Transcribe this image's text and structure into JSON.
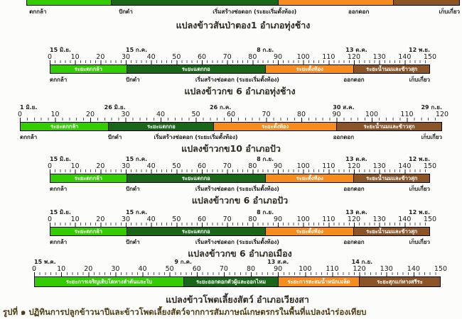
{
  "palette": {
    "light_green": "#33cc00",
    "dark_green": "#196619",
    "orange": "#f68b1e",
    "brown": "#8a5426"
  },
  "figure_caption": "รูปที่ ๑ ปฏิทินการปลูกข้าวนาปีและข้าวโพดเลี้ยงสัตว์จากการสัมภาษณ์เกษตรกรในพื้นที่แปลงนำร่องเทียบ",
  "chart_data": [
    {
      "type": "bar",
      "layout": "horizontal-timeline",
      "x_unit": "days",
      "caption": "แปลงข้าวสันป่าตอง1 อำเภอทุ่งช้าง",
      "axis": {
        "min": 0,
        "max": 150,
        "tick_step": 10,
        "minor_tick": 2,
        "tick_labels": []
      },
      "dates": [],
      "segments": [
        {
          "color": "light_green",
          "start": 0,
          "end": 29,
          "label": ""
        },
        {
          "color": "dark_green",
          "start": 29,
          "end": 87,
          "label": ""
        },
        {
          "color": "orange",
          "start": 87,
          "end": 127,
          "label": ""
        },
        {
          "color": "brown",
          "start": 127,
          "end": 150,
          "label": ""
        }
      ],
      "stage_labels": [
        {
          "day": 1,
          "align": "left",
          "label": "ตกกล้า"
        },
        {
          "day": 32,
          "align": "left",
          "label": "ปักดำ"
        },
        {
          "day": 79,
          "align": "center",
          "label": "เริ่มสร้างช่อดอก (ระยะเริ่มตั้งท้อง)"
        },
        {
          "day": 115,
          "align": "center",
          "label": "ออกดอก"
        },
        {
          "day": 150,
          "align": "right",
          "label": "เก็บเกี่ยว"
        }
      ]
    },
    {
      "type": "bar",
      "layout": "horizontal-timeline",
      "x_unit": "days",
      "caption": "แปลงข้าวกข 6 อำเภอทุ่งช้าง",
      "axis": {
        "min": 0,
        "max": 150,
        "tick_step": 10,
        "minor_tick": 2,
        "tick_labels": [
          "0",
          "10",
          "20",
          "30",
          "40",
          "50",
          "60",
          "70",
          "80",
          "90",
          "100",
          "110",
          "120",
          "130",
          "140",
          "150"
        ]
      },
      "dates": [
        {
          "day": 0,
          "align": "left",
          "label": "15 มิ.ย."
        },
        {
          "day": 30,
          "align": "left",
          "label": "15 ก.ค."
        },
        {
          "day": 85,
          "align": "center",
          "label": "8 ก.ย."
        },
        {
          "day": 121,
          "align": "center",
          "label": "13 ต.ค."
        },
        {
          "day": 150,
          "align": "right",
          "label": "12 พ.ย."
        }
      ],
      "segments": [
        {
          "color": "light_green",
          "start": 0,
          "end": 30,
          "label": "ระยะตกกล้า"
        },
        {
          "color": "dark_green",
          "start": 30,
          "end": 85,
          "label": "ระยะแตกกอ"
        },
        {
          "color": "orange",
          "start": 85,
          "end": 120,
          "label": "ระยะตั้งท้อง"
        },
        {
          "color": "brown",
          "start": 120,
          "end": 150,
          "label": "ระยะน้ำนมและข้าวสุก"
        }
      ],
      "stage_labels": [
        {
          "day": 0,
          "align": "left",
          "label": "ตกกล้า"
        },
        {
          "day": 30,
          "align": "left",
          "label": "ปักดำ"
        },
        {
          "day": 74,
          "align": "center",
          "label": "เริ่มสร้างช่อดอก (ระยะเริ่มตั้งท้อง)"
        },
        {
          "day": 120,
          "align": "center",
          "label": "ออกดอก"
        },
        {
          "day": 150,
          "align": "right",
          "label": "เก็บเกี่ยว"
        }
      ]
    },
    {
      "type": "bar",
      "layout": "horizontal-timeline",
      "x_unit": "days",
      "caption": "แปลงข้าวกข10 อำเภอปัว",
      "axis": {
        "min": 0,
        "max": 120,
        "tick_step": 10,
        "minor_tick": 2,
        "tick_labels": [
          "0",
          "10",
          "20",
          "30",
          "40",
          "50",
          "60",
          "70",
          "80",
          "90",
          "100",
          "110",
          "120"
        ]
      },
      "dates": [
        {
          "day": 0,
          "align": "left",
          "label": "1 มิ.ย."
        },
        {
          "day": 27,
          "align": "center",
          "label": "26 มิ.ย."
        },
        {
          "day": 57,
          "align": "center",
          "label": "26 ก.ค."
        },
        {
          "day": 92,
          "align": "center",
          "label": "30 ส.ค."
        },
        {
          "day": 120,
          "align": "right",
          "label": "29 ก.ย."
        }
      ],
      "segments": [
        {
          "color": "light_green",
          "start": 0,
          "end": 25,
          "label": "ระยะตกกล้า"
        },
        {
          "color": "dark_green",
          "start": 25,
          "end": 55,
          "label": "ระยะแตกกอ"
        },
        {
          "color": "orange",
          "start": 55,
          "end": 90,
          "label": "ระยะตั้งท้อง"
        },
        {
          "color": "brown",
          "start": 90,
          "end": 120,
          "label": "ระยะน้ำนมและข้าวสุก"
        }
      ],
      "stage_labels": [
        {
          "day": 0,
          "align": "left",
          "label": "ตกกล้า"
        },
        {
          "day": 25,
          "align": "left",
          "label": "ปักดำ"
        },
        {
          "day": 50,
          "align": "center",
          "label": "เริ่มสร้างช่อดอก (ระยะเริ่มตั้งท้อง)"
        },
        {
          "day": 92,
          "align": "center",
          "label": "ออกดอก"
        },
        {
          "day": 120,
          "align": "right",
          "label": "เก็บเกี่ยว"
        }
      ]
    },
    {
      "type": "bar",
      "layout": "horizontal-timeline",
      "x_unit": "days",
      "caption": "แปลงข้าวกข 6 อำเภอปัว",
      "axis": {
        "min": 0,
        "max": 150,
        "tick_step": 10,
        "minor_tick": 2,
        "tick_labels": [
          "0",
          "10",
          "20",
          "30",
          "40",
          "50",
          "60",
          "70",
          "80",
          "90",
          "100",
          "110",
          "120",
          "130",
          "140",
          "150"
        ]
      },
      "dates": [
        {
          "day": 0,
          "align": "left",
          "label": "15 มิ.ย."
        },
        {
          "day": 30,
          "align": "left",
          "label": "15 ก.ค."
        },
        {
          "day": 85,
          "align": "center",
          "label": "8 ก.ย."
        },
        {
          "day": 121,
          "align": "center",
          "label": "13 ต.ค."
        },
        {
          "day": 150,
          "align": "right",
          "label": "12 พ.ย."
        }
      ],
      "segments": [
        {
          "color": "light_green",
          "start": 0,
          "end": 30,
          "label": "ระยะตกกล้า"
        },
        {
          "color": "dark_green",
          "start": 30,
          "end": 85,
          "label": "ระยะแตกกอ"
        },
        {
          "color": "orange",
          "start": 85,
          "end": 120,
          "label": "ระยะตั้งท้อง"
        },
        {
          "color": "brown",
          "start": 120,
          "end": 150,
          "label": "ระยะน้ำนมและข้าวสุก"
        }
      ],
      "stage_labels": [
        {
          "day": 0,
          "align": "left",
          "label": "ตกกล้า"
        },
        {
          "day": 30,
          "align": "left",
          "label": "ปักดำ"
        },
        {
          "day": 74,
          "align": "center",
          "label": "เริ่มสร้างช่อดอก (ระยะเริ่มตั้งท้อง)"
        },
        {
          "day": 120,
          "align": "center",
          "label": "ออกดอก"
        },
        {
          "day": 150,
          "align": "right",
          "label": "เก็บเกี่ยว"
        }
      ]
    },
    {
      "type": "bar",
      "layout": "horizontal-timeline",
      "x_unit": "days",
      "caption": "แปลงข้าวกข 6 อำเภอเมือง",
      "axis": {
        "min": 0,
        "max": 150,
        "tick_step": 10,
        "minor_tick": 2,
        "tick_labels": [
          "0",
          "10",
          "20",
          "30",
          "40",
          "50",
          "60",
          "70",
          "80",
          "90",
          "100",
          "110",
          "120",
          "130",
          "140",
          "150"
        ]
      },
      "dates": [
        {
          "day": 0,
          "align": "left",
          "label": "15 มิ.ย."
        },
        {
          "day": 30,
          "align": "left",
          "label": "15 ก.ค."
        },
        {
          "day": 85,
          "align": "center",
          "label": "8 ก.ย."
        },
        {
          "day": 121,
          "align": "center",
          "label": "13 ต.ค."
        },
        {
          "day": 150,
          "align": "right",
          "label": "12 พ.ย."
        }
      ],
      "segments": [
        {
          "color": "light_green",
          "start": 0,
          "end": 30,
          "label": "ระยะตกกล้า"
        },
        {
          "color": "dark_green",
          "start": 30,
          "end": 85,
          "label": "ระยะแตกกอ"
        },
        {
          "color": "orange",
          "start": 85,
          "end": 120,
          "label": "ระยะตั้งท้อง"
        },
        {
          "color": "brown",
          "start": 120,
          "end": 150,
          "label": "ระยะน้ำนมและข้าวสุก"
        }
      ],
      "stage_labels": [
        {
          "day": 0,
          "align": "left",
          "label": "ตกกล้า"
        },
        {
          "day": 30,
          "align": "left",
          "label": "ปักดำ"
        },
        {
          "day": 74,
          "align": "center",
          "label": "เริ่มสร้างช่อดอก (ระยะเริ่มตั้งท้อง)"
        },
        {
          "day": 120,
          "align": "center",
          "label": "ออกดอก"
        },
        {
          "day": 150,
          "align": "right",
          "label": "เก็บเกี่ยว"
        }
      ]
    },
    {
      "type": "bar",
      "layout": "horizontal-timeline",
      "x_unit": "days",
      "caption": "แปลงข้าวโพดเลี้ยงสัตว์ อำเภอเวียงสา",
      "axis": {
        "min": 0,
        "max": 150,
        "tick_step": 10,
        "minor_tick": 2,
        "tick_labels": [
          "0",
          "10",
          "20",
          "30",
          "40",
          "50",
          "60",
          "70",
          "80",
          "90",
          "100",
          "110",
          "120",
          "130",
          "140",
          "150"
        ]
      },
      "dates": [
        {
          "day": 0,
          "align": "left",
          "label": "15 พ.ค."
        },
        {
          "day": 55,
          "align": "center",
          "label": "9 ก.ค."
        },
        {
          "day": 90,
          "align": "center",
          "label": "13 ส.ค."
        },
        {
          "day": 121,
          "align": "center",
          "label": "14 ก.ย."
        }
      ],
      "segments": [
        {
          "color": "light_green",
          "start": 0,
          "end": 55,
          "label": "ระยะการเจริญเติบโตทางลำต้นและใบ"
        },
        {
          "color": "dark_green",
          "start": 55,
          "end": 90,
          "label": "ระยะออกดอกตัวผู้และออกไหม"
        },
        {
          "color": "orange",
          "start": 90,
          "end": 120,
          "label": "ระยะการสะสมน้ำหนักเมล็ด"
        },
        {
          "color": "brown",
          "start": 120,
          "end": 150,
          "label": "ระยะสุกแก่ทางสรีระ"
        }
      ],
      "stage_labels": []
    }
  ]
}
